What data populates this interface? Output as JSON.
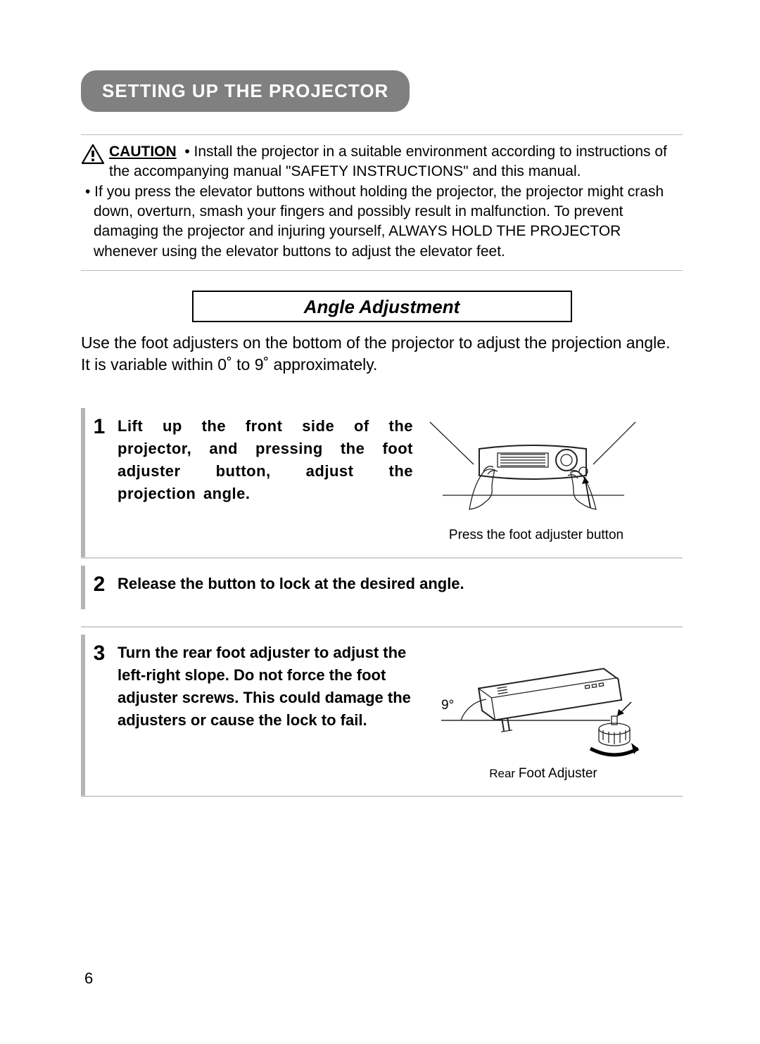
{
  "page": {
    "section_header": "SETTING UP THE PROJECTOR",
    "page_number": "6"
  },
  "caution": {
    "label": "CAUTION",
    "line1": "• Install the projector in a suitable environment according to instructions of the accompanying manual \"SAFETY INSTRUCTIONS\" and this manual.",
    "bullet2": "• If you press the elevator buttons without holding the projector, the projector might crash down, overturn, smash your fingers and possibly result in malfunction. To prevent damaging the projector and injuring yourself, ALWAYS HOLD THE PROJECTOR whenever using the elevator buttons to adjust the elevator feet.",
    "icon_name": "warning-triangle-icon"
  },
  "angle_section": {
    "title": "Angle Adjustment",
    "intro": "Use the foot adjusters on the bottom of the projector to adjust the projection angle. It is variable within 0˚ to 9˚ approximately."
  },
  "steps": [
    {
      "num": "1",
      "text": "Lift up the front side of the projector, and pressing the foot adjuster button, adjust the projection angle.",
      "caption": "Press the foot adjuster button"
    },
    {
      "num": "2",
      "text": "Release the button to lock at the desired angle."
    },
    {
      "num": "3",
      "text": "Turn the rear foot adjuster to adjust the left-right slope. Do not force the foot adjuster screws. This could damage the adjusters or cause the lock to fail.",
      "angle_label": "9°",
      "caption": "Rear Foot Adjuster"
    }
  ],
  "style": {
    "header_bg": "#808080",
    "header_fg": "#ffffff",
    "rule_color": "#cfcfcf",
    "vbar_color": "#b5b5b5",
    "warn_stroke": "#000000",
    "body_font_size": 21,
    "header_font_size": 26,
    "stepnum_font_size": 30,
    "page_bg": "#ffffff"
  }
}
